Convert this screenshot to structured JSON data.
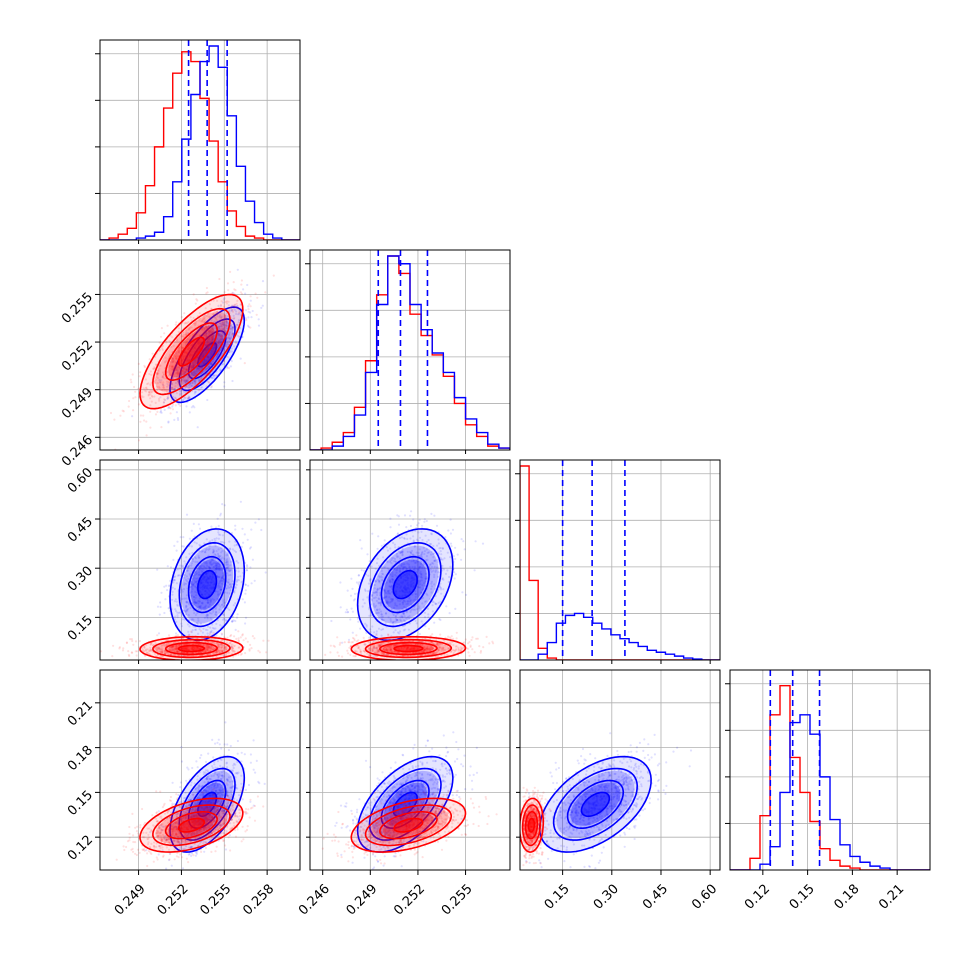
{
  "chart_data": {
    "type": "corner",
    "grid": true,
    "colors": {
      "series_a": "#0000ff",
      "series_b": "#ff0000",
      "axis": "#000000",
      "grid": "#b0b0b0"
    },
    "series": [
      {
        "color": "#0000ff"
      },
      {
        "color": "#ff0000"
      }
    ],
    "parameters": [
      {
        "range": [
          0.2463,
          0.2603
        ],
        "ticks": [
          0.249,
          0.252,
          0.255,
          0.258
        ],
        "tick_labels": [
          "0.249",
          "0.252",
          "0.255",
          "0.258"
        ],
        "quantiles_series_a": [
          0.2525,
          0.2538,
          0.2552
        ],
        "hist_series_a": [
          0,
          0,
          0,
          0,
          0.01,
          0.02,
          0.04,
          0.12,
          0.3,
          0.52,
          0.75,
          0.92,
          1.0,
          0.89,
          0.64,
          0.38,
          0.2,
          0.09,
          0.03,
          0.01,
          0,
          0
        ],
        "hist_series_b": [
          0,
          0.01,
          0.03,
          0.06,
          0.14,
          0.28,
          0.48,
          0.68,
          0.86,
          0.97,
          0.92,
          0.73,
          0.51,
          0.3,
          0.15,
          0.07,
          0.02,
          0.01,
          0,
          0,
          0,
          0
        ]
      },
      {
        "range": [
          0.2452,
          0.2578
        ],
        "ticks": [
          0.246,
          0.249,
          0.252,
          0.255
        ],
        "tick_labels": [
          "0.246",
          "0.249",
          "0.252",
          "0.255"
        ],
        "quantiles_series_a": [
          0.2495,
          0.2509,
          0.2526
        ],
        "hist_series_a": [
          0,
          0,
          0.02,
          0.07,
          0.18,
          0.4,
          0.75,
          1.0,
          0.96,
          0.75,
          0.62,
          0.5,
          0.4,
          0.27,
          0.16,
          0.09,
          0.03,
          0.01
        ],
        "hist_series_b": [
          0,
          0.01,
          0.04,
          0.09,
          0.22,
          0.46,
          0.8,
          1.0,
          0.91,
          0.7,
          0.59,
          0.49,
          0.38,
          0.24,
          0.13,
          0.07,
          0.02,
          0.01
        ]
      },
      {
        "range": [
          0.02,
          0.63
        ],
        "ticks": [
          0.15,
          0.3,
          0.45,
          0.6
        ],
        "tick_labels": [
          "0.15",
          "0.30",
          "0.45",
          "0.60"
        ],
        "quantiles_series_a": [
          0.15,
          0.24,
          0.34
        ],
        "hist_series_a": [
          0,
          0,
          0.03,
          0.09,
          0.19,
          0.23,
          0.24,
          0.22,
          0.19,
          0.16,
          0.13,
          0.11,
          0.09,
          0.07,
          0.05,
          0.04,
          0.03,
          0.02,
          0.01,
          0.005,
          0,
          0
        ],
        "hist_series_b": [
          1.0,
          0.41,
          0.06,
          0.01,
          0,
          0,
          0,
          0,
          0,
          0,
          0,
          0,
          0,
          0,
          0,
          0,
          0,
          0,
          0,
          0,
          0,
          0
        ]
      },
      {
        "range": [
          0.098,
          0.232
        ],
        "ticks": [
          0.12,
          0.15,
          0.18,
          0.21
        ],
        "tick_labels": [
          "0.12",
          "0.15",
          "0.18",
          "0.21"
        ],
        "quantiles_series_a": [
          0.125,
          0.14,
          0.158
        ],
        "hist_series_a": [
          0,
          0,
          0,
          0.03,
          0.12,
          0.4,
          0.76,
          0.8,
          0.7,
          0.48,
          0.26,
          0.13,
          0.07,
          0.04,
          0.02,
          0.01,
          0,
          0,
          0,
          0
        ],
        "hist_series_b": [
          0,
          0,
          0.06,
          0.28,
          0.8,
          0.95,
          0.58,
          0.4,
          0.25,
          0.11,
          0.05,
          0.02,
          0.01,
          0,
          0,
          0,
          0,
          0,
          0,
          0
        ]
      }
    ],
    "pairs": [
      {
        "row": 1,
        "col": 0,
        "series_a": {
          "mean": [
            0.2538,
            0.2512
          ],
          "sd": [
            0.0013,
            0.0015
          ],
          "rho": 0.72
        },
        "series_b": {
          "mean": [
            0.2527,
            0.2514
          ],
          "sd": [
            0.0018,
            0.0018
          ],
          "rho": 0.74
        }
      },
      {
        "row": 2,
        "col": 0,
        "series_a": {
          "mean": [
            0.2538,
            0.25
          ],
          "sd": [
            0.0013,
            0.085
          ],
          "rho": 0.25
        },
        "series_b": {
          "mean": [
            0.2527,
            0.055
          ],
          "sd": [
            0.0018,
            0.018
          ],
          "rho": 0.05
        }
      },
      {
        "row": 2,
        "col": 1,
        "series_a": {
          "mean": [
            0.2512,
            0.25
          ],
          "sd": [
            0.0015,
            0.085
          ],
          "rho": 0.35
        },
        "series_b": {
          "mean": [
            0.2514,
            0.055
          ],
          "sd": [
            0.0018,
            0.018
          ],
          "rho": 0.05
        }
      },
      {
        "row": 3,
        "col": 0,
        "series_a": {
          "mean": [
            0.2538,
            0.142
          ],
          "sd": [
            0.0013,
            0.016
          ],
          "rho": 0.55
        },
        "series_b": {
          "mean": [
            0.2527,
            0.128
          ],
          "sd": [
            0.0018,
            0.009
          ],
          "rho": 0.45
        }
      },
      {
        "row": 3,
        "col": 1,
        "series_a": {
          "mean": [
            0.2512,
            0.142
          ],
          "sd": [
            0.0015,
            0.016
          ],
          "rho": 0.55
        },
        "series_b": {
          "mean": [
            0.2514,
            0.128
          ],
          "sd": [
            0.0018,
            0.009
          ],
          "rho": 0.45
        }
      },
      {
        "row": 3,
        "col": 2,
        "series_a": {
          "mean": [
            0.25,
            0.142
          ],
          "sd": [
            0.085,
            0.016
          ],
          "rho": 0.5
        },
        "series_b": {
          "mean": [
            0.055,
            0.128
          ],
          "sd": [
            0.018,
            0.009
          ],
          "rho": 0.1
        }
      }
    ]
  }
}
